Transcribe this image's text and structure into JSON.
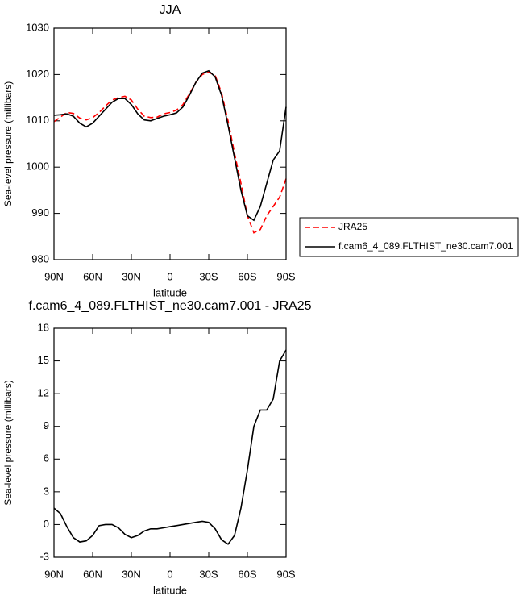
{
  "chart_data": [
    {
      "type": "line",
      "title": "JJA",
      "xlabel": "latitude",
      "ylabel": "Sea-level pressure (millibars)",
      "x": [
        90,
        85,
        80,
        75,
        70,
        65,
        60,
        55,
        50,
        45,
        40,
        35,
        30,
        25,
        20,
        15,
        10,
        5,
        0,
        -5,
        -10,
        -15,
        -20,
        -25,
        -30,
        -35,
        -40,
        -45,
        -50,
        -55,
        -60,
        -65,
        -70,
        -75,
        -80,
        -85,
        -90
      ],
      "series": [
        {
          "name": "JRA25",
          "color": "#ff0000",
          "dashed": true,
          "values": [
            1009.8,
            1010.8,
            1011.8,
            1011.6,
            1010.6,
            1010.2,
            1010.7,
            1011.8,
            1013.2,
            1014.5,
            1015.0,
            1015.3,
            1014.5,
            1012.5,
            1011.0,
            1010.7,
            1010.8,
            1011.5,
            1011.8,
            1012.3,
            1013.5,
            1015.8,
            1018.3,
            1020.0,
            1020.5,
            1019.8,
            1016.0,
            1010.0,
            1003.0,
            996.5,
            989.5,
            985.8,
            986.5,
            989.5,
            991.5,
            993.5,
            997.5
          ]
        },
        {
          "name": "f.cam6_4_089.FLTHIST_ne30.cam7.001",
          "color": "#000000",
          "dashed": false,
          "values": [
            1011.2,
            1011.3,
            1011.5,
            1011.0,
            1009.5,
            1008.7,
            1009.5,
            1011.0,
            1012.5,
            1014.0,
            1014.8,
            1014.8,
            1013.5,
            1011.5,
            1010.2,
            1010.0,
            1010.5,
            1011.0,
            1011.3,
            1011.7,
            1013.0,
            1015.5,
            1018.3,
            1020.3,
            1020.8,
            1019.5,
            1015.5,
            1009.0,
            1002.0,
            995.0,
            989.5,
            988.5,
            991.5,
            996.5,
            1001.5,
            1003.5,
            1013.0
          ]
        }
      ],
      "xlim": [
        90,
        -90
      ],
      "xticks": [
        {
          "value": 90,
          "label": "90N"
        },
        {
          "value": 60,
          "label": "60N"
        },
        {
          "value": 30,
          "label": "30N"
        },
        0,
        {
          "value": -30,
          "label": "30S"
        },
        {
          "value": -60,
          "label": "60S"
        },
        {
          "value": -90,
          "label": "90S"
        }
      ],
      "ylim": [
        980,
        1030
      ],
      "yticks": [
        980,
        990,
        1000,
        1010,
        1020,
        1030
      ],
      "legend": "right"
    },
    {
      "type": "line",
      "title": "f.cam6_4_089.FLTHIST_ne30.cam7.001 - JRA25",
      "xlabel": "latitude",
      "ylabel": "Sea-level pressure (millibars)",
      "x": [
        90,
        85,
        80,
        75,
        70,
        65,
        60,
        55,
        50,
        45,
        40,
        35,
        30,
        25,
        20,
        15,
        10,
        5,
        0,
        -5,
        -10,
        -15,
        -20,
        -25,
        -30,
        -35,
        -40,
        -45,
        -50,
        -55,
        -60,
        -65,
        -70,
        -75,
        -80,
        -85,
        -90
      ],
      "series": [
        {
          "color": "#000000",
          "dashed": false,
          "values": [
            1.5,
            1.0,
            -0.2,
            -1.2,
            -1.6,
            -1.5,
            -1.0,
            -0.1,
            0.0,
            0.0,
            -0.3,
            -0.9,
            -1.2,
            -1.0,
            -0.6,
            -0.4,
            -0.4,
            -0.3,
            -0.2,
            -0.1,
            0.0,
            0.1,
            0.2,
            0.3,
            0.2,
            -0.4,
            -1.4,
            -1.8,
            -1.0,
            1.5,
            5.0,
            9.0,
            10.5,
            10.5,
            11.5,
            15.0,
            16.0
          ]
        }
      ],
      "xlim": [
        90,
        -90
      ],
      "xticks": [
        {
          "value": 90,
          "label": "90N"
        },
        {
          "value": 60,
          "label": "60N"
        },
        {
          "value": 30,
          "label": "30N"
        },
        0,
        {
          "value": -30,
          "label": "30S"
        },
        {
          "value": -60,
          "label": "60S"
        },
        {
          "value": -90,
          "label": "90S"
        }
      ],
      "ylim": [
        -3,
        18
      ],
      "yticks": [
        -3,
        0,
        3,
        6,
        9,
        12,
        15,
        18
      ]
    }
  ]
}
